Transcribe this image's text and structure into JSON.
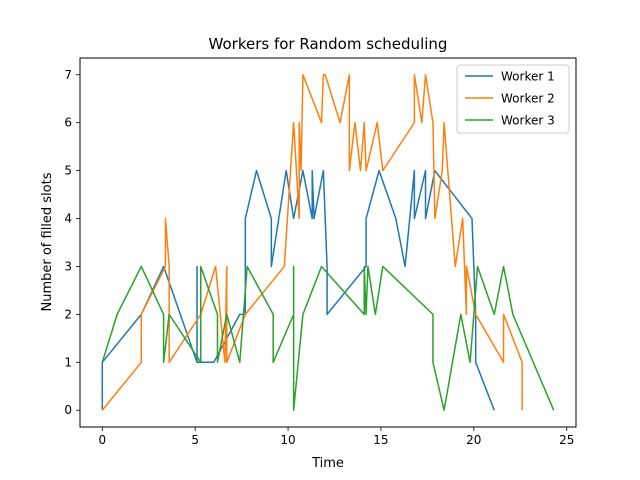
{
  "chart_data": {
    "type": "line",
    "title": "Workers for Random scheduling",
    "xlabel": "Time",
    "ylabel": "Number of filled slots",
    "xlim": [
      -1.2,
      25.5
    ],
    "ylim": [
      -0.35,
      7.35
    ],
    "xticks": [
      0,
      5,
      10,
      15,
      20,
      25
    ],
    "yticks": [
      0,
      1,
      2,
      3,
      4,
      5,
      6,
      7
    ],
    "legend_position": "top-right",
    "grid": false,
    "series": [
      {
        "name": "Worker 1",
        "color": "#1f77b4",
        "points": [
          [
            0,
            0
          ],
          [
            0,
            1
          ],
          [
            2.1,
            2
          ],
          [
            3.3,
            3
          ],
          [
            5.1,
            1
          ],
          [
            5.1,
            3
          ],
          [
            5.1,
            1
          ],
          [
            6,
            1
          ],
          [
            7.4,
            2
          ],
          [
            7.7,
            2
          ],
          [
            7.7,
            4
          ],
          [
            8.3,
            5
          ],
          [
            9.1,
            4
          ],
          [
            9.1,
            3
          ],
          [
            9.9,
            5
          ],
          [
            10.3,
            4
          ],
          [
            10.8,
            5
          ],
          [
            11.3,
            4
          ],
          [
            11.3,
            5
          ],
          [
            11.4,
            4
          ],
          [
            11.9,
            5
          ],
          [
            12.1,
            3
          ],
          [
            12.1,
            2
          ],
          [
            14.2,
            3
          ],
          [
            14.2,
            4
          ],
          [
            14.9,
            5
          ],
          [
            15.8,
            4
          ],
          [
            16.3,
            3
          ],
          [
            16.8,
            5
          ],
          [
            16.8,
            4
          ],
          [
            17.4,
            5
          ],
          [
            17.4,
            4
          ],
          [
            17.9,
            5
          ],
          [
            19.9,
            4
          ],
          [
            20.1,
            2
          ],
          [
            20.1,
            1
          ],
          [
            21.1,
            0
          ]
        ]
      },
      {
        "name": "Worker 2",
        "color": "#ff7f0e",
        "points": [
          [
            0,
            0
          ],
          [
            2.1,
            1
          ],
          [
            2.1,
            2
          ],
          [
            3.4,
            3
          ],
          [
            3.4,
            4
          ],
          [
            3.6,
            3
          ],
          [
            3.6,
            1
          ],
          [
            5.3,
            2
          ],
          [
            6.1,
            3
          ],
          [
            6.6,
            1
          ],
          [
            6.7,
            3
          ],
          [
            6.7,
            1
          ],
          [
            7.7,
            2
          ],
          [
            9.8,
            3
          ],
          [
            10.3,
            6
          ],
          [
            10.6,
            4
          ],
          [
            10.6,
            6
          ],
          [
            10.7,
            5
          ],
          [
            10.8,
            7
          ],
          [
            11.8,
            6
          ],
          [
            11.9,
            7
          ],
          [
            12,
            7
          ],
          [
            12.8,
            6
          ],
          [
            13.3,
            7
          ],
          [
            13.3,
            5
          ],
          [
            13.6,
            6
          ],
          [
            13.9,
            5
          ],
          [
            14.1,
            6
          ],
          [
            14.2,
            5
          ],
          [
            14.8,
            6
          ],
          [
            15.1,
            5
          ],
          [
            16.8,
            6
          ],
          [
            16.8,
            7
          ],
          [
            17.2,
            6
          ],
          [
            17.4,
            7
          ],
          [
            17.8,
            6
          ],
          [
            17.9,
            4
          ],
          [
            18.3,
            5
          ],
          [
            18.4,
            6
          ],
          [
            19,
            3
          ],
          [
            19.4,
            4
          ],
          [
            19.6,
            2
          ],
          [
            19.6,
            3
          ],
          [
            20.1,
            2
          ],
          [
            21.6,
            1
          ],
          [
            21.6,
            2
          ],
          [
            22.6,
            1
          ],
          [
            22.6,
            0
          ]
        ]
      },
      {
        "name": "Worker 3",
        "color": "#2ca02c",
        "points": [
          [
            0,
            1
          ],
          [
            0.8,
            2
          ],
          [
            2.1,
            3
          ],
          [
            3.3,
            2
          ],
          [
            3.3,
            1
          ],
          [
            3.6,
            2
          ],
          [
            5.3,
            1
          ],
          [
            5.3,
            3
          ],
          [
            6.2,
            2
          ],
          [
            6.2,
            1
          ],
          [
            6.7,
            2
          ],
          [
            7.4,
            1
          ],
          [
            7.8,
            3
          ],
          [
            9.2,
            2
          ],
          [
            9.2,
            1
          ],
          [
            10.3,
            2
          ],
          [
            10.3,
            3
          ],
          [
            10.3,
            0
          ],
          [
            10.8,
            2
          ],
          [
            11.8,
            3
          ],
          [
            14.1,
            2
          ],
          [
            14.1,
            3
          ],
          [
            14.2,
            2
          ],
          [
            14.3,
            3
          ],
          [
            14.7,
            2
          ],
          [
            15.1,
            3
          ],
          [
            17.8,
            2
          ],
          [
            17.8,
            1
          ],
          [
            18.4,
            0
          ],
          [
            19.3,
            2
          ],
          [
            19.8,
            1
          ],
          [
            20.2,
            3
          ],
          [
            21.1,
            2
          ],
          [
            21.6,
            3
          ],
          [
            22.1,
            2
          ],
          [
            24.3,
            0
          ]
        ]
      }
    ]
  }
}
